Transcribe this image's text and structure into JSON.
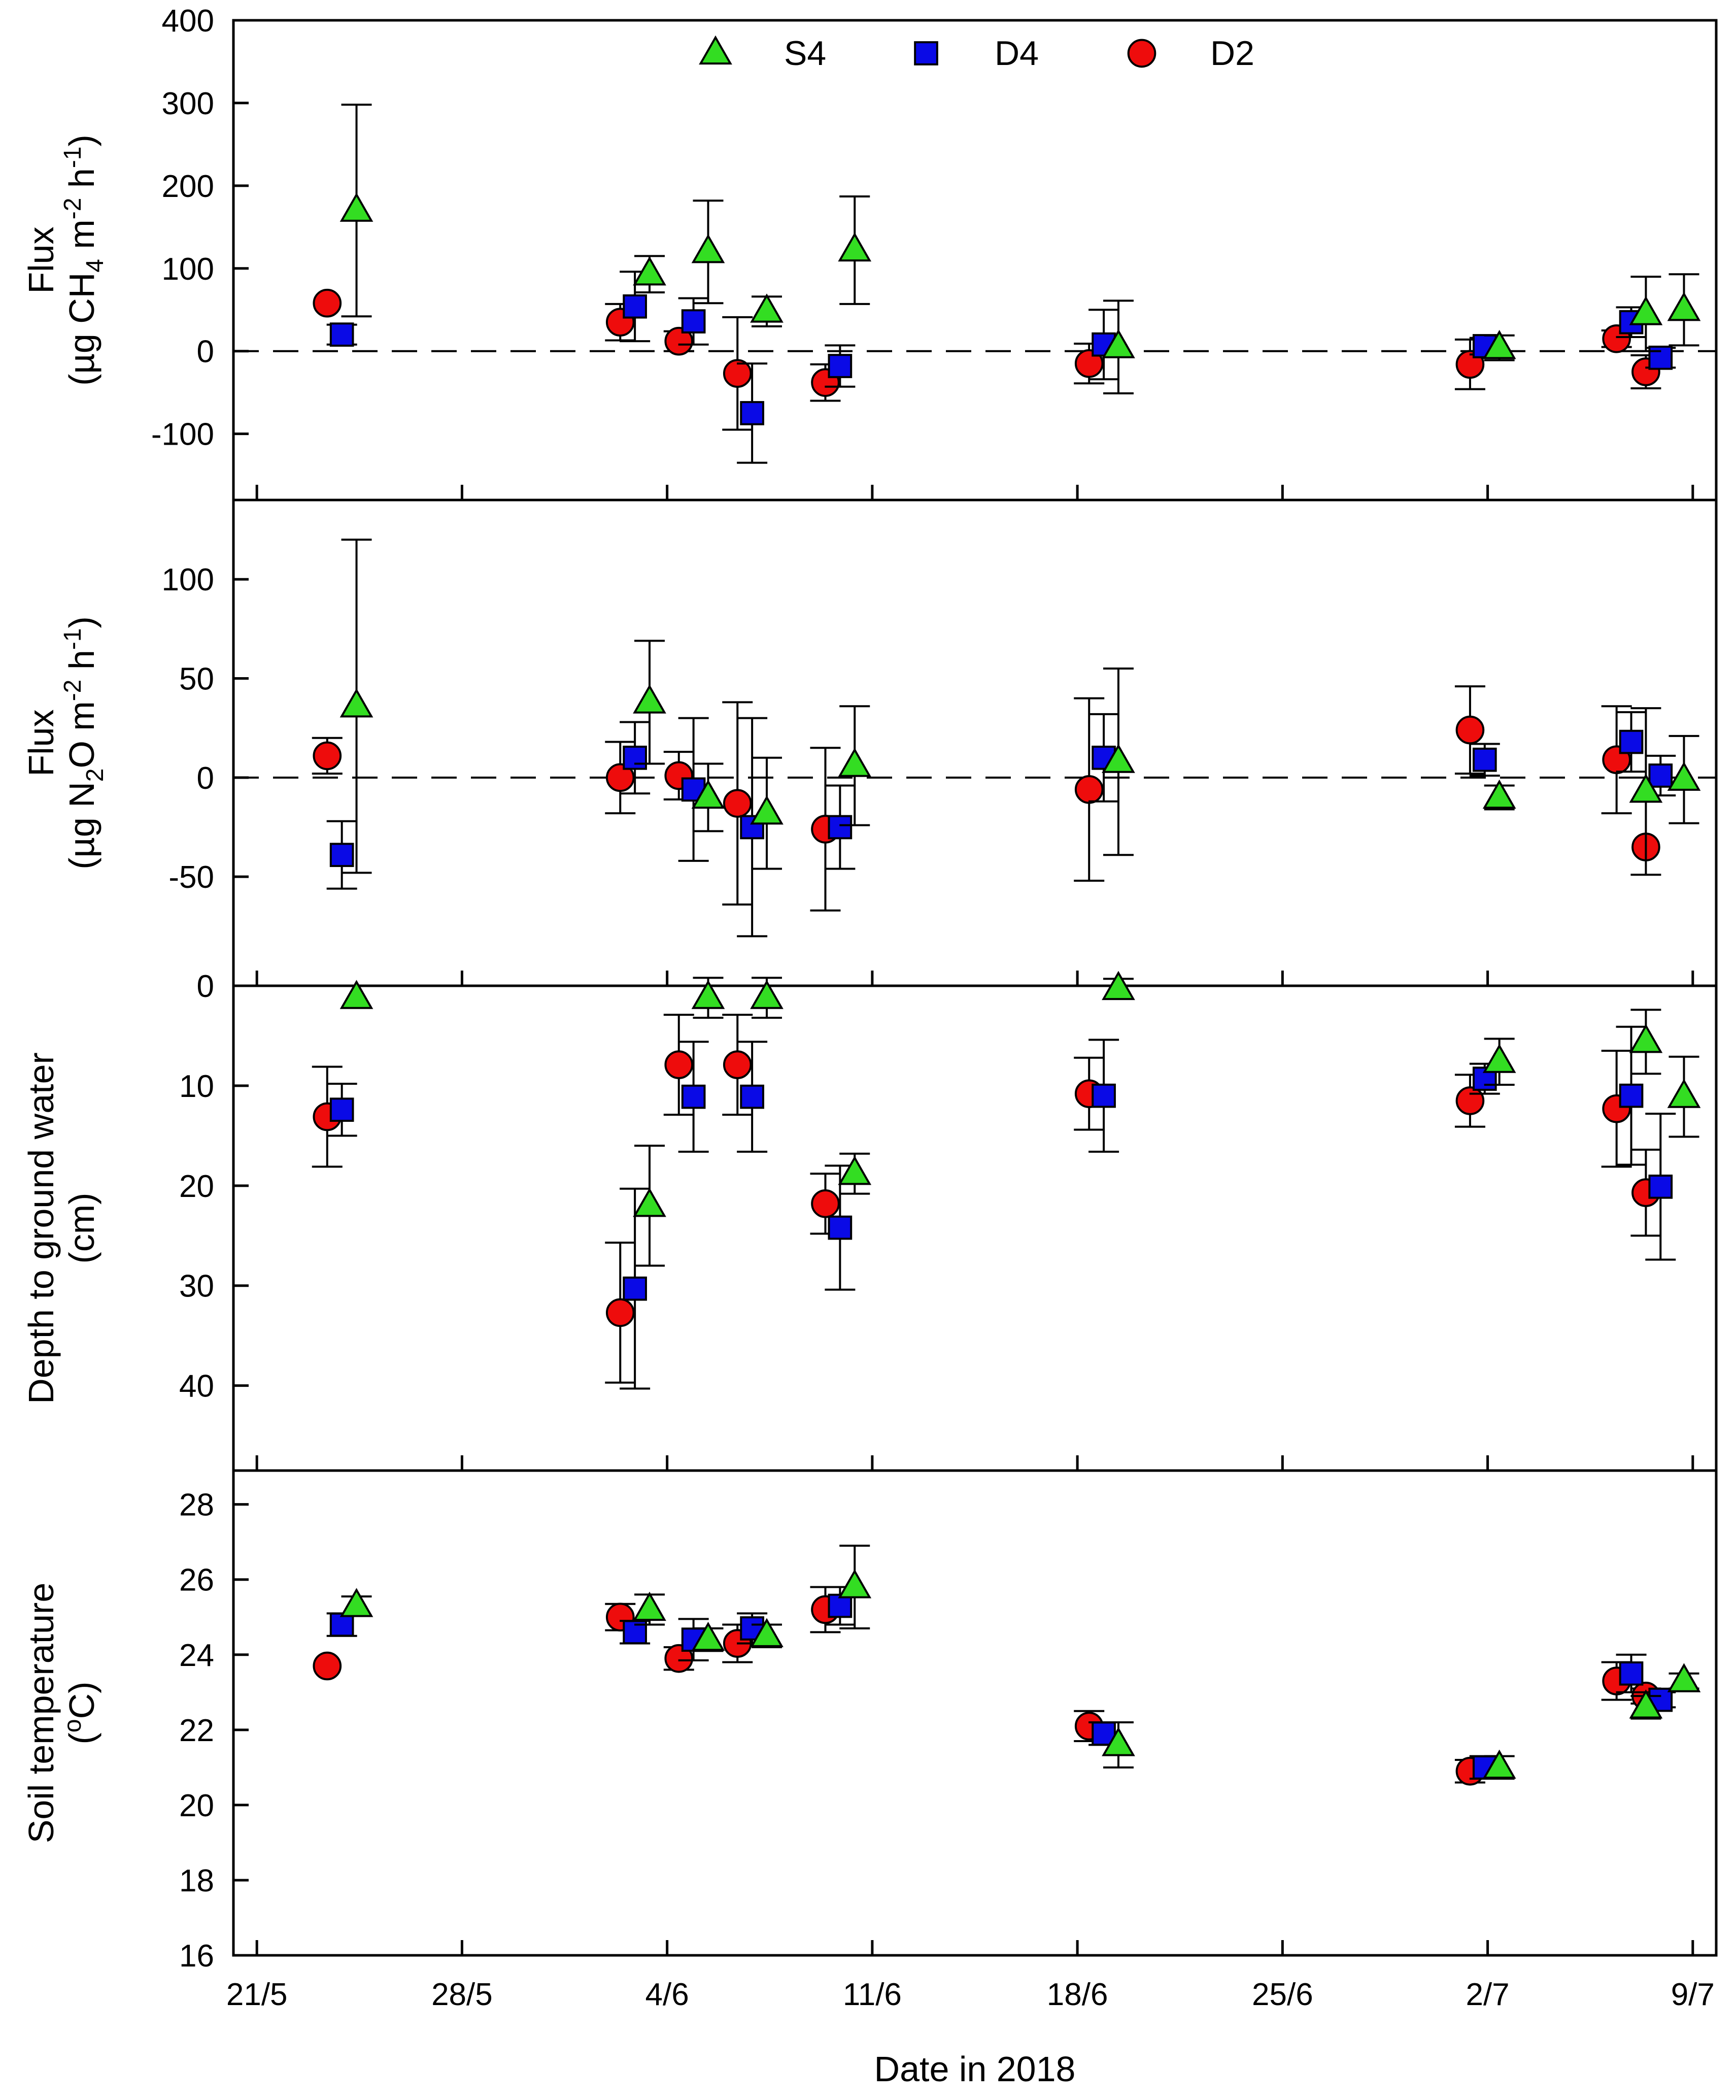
{
  "chart_data": {
    "type": "scatter",
    "x_axis": {
      "label": "Date in 2018",
      "tick_labels": [
        "21/5",
        "28/5",
        "4/6",
        "11/6",
        "18/6",
        "25/6",
        "2/7",
        "9/7"
      ],
      "tick_days": [
        0,
        7,
        14,
        21,
        28,
        35,
        42,
        49
      ],
      "range_days": [
        -0.8,
        49.8
      ]
    },
    "legend": {
      "position": "top-center",
      "entries": [
        {
          "name": "S4",
          "marker": "triangle",
          "color": "#33dd22"
        },
        {
          "name": "D4",
          "marker": "square",
          "color": "#0a0ae6"
        },
        {
          "name": "D2",
          "marker": "circle",
          "color": "#ee0c0c"
        }
      ]
    },
    "panels": [
      {
        "id": "ch4",
        "ylabel_line1": "Flux",
        "ylabel_line2": {
          "pre": "(µg CH",
          "sub": "4",
          "mid": " m",
          "sup1": "-2",
          "mid2": " h",
          "sup2": "-1",
          "post": ")"
        },
        "ylim": [
          -180,
          400
        ],
        "inverted": false,
        "yticks": [
          -100,
          0,
          100,
          200,
          300,
          400
        ],
        "zero_line": true,
        "series": [
          {
            "name": "S4",
            "points": [
              {
                "x": 3.4,
                "y": 170,
                "err": 128
              },
              {
                "x": 13.4,
                "y": 93,
                "err": 22
              },
              {
                "x": 15.4,
                "y": 120,
                "err": 62
              },
              {
                "x": 17.4,
                "y": 48,
                "err": 18
              },
              {
                "x": 20.4,
                "y": 122,
                "err": 65
              },
              {
                "x": 29.4,
                "y": 5,
                "err": 56
              },
              {
                "x": 42.4,
                "y": 4,
                "err": 15
              },
              {
                "x": 47.4,
                "y": 45,
                "err": 45
              },
              {
                "x": 48.7,
                "y": 50,
                "err": 43
              }
            ]
          },
          {
            "name": "D4",
            "points": [
              {
                "x": 2.9,
                "y": 20,
                "err": 12
              },
              {
                "x": 12.9,
                "y": 54,
                "err": 42
              },
              {
                "x": 14.9,
                "y": 36,
                "err": 28
              },
              {
                "x": 16.9,
                "y": -75,
                "err": 60
              },
              {
                "x": 19.9,
                "y": -18,
                "err": 25
              },
              {
                "x": 28.9,
                "y": 8,
                "err": 42
              },
              {
                "x": 41.9,
                "y": 6,
                "err": 10
              },
              {
                "x": 46.9,
                "y": 35,
                "err": 18
              },
              {
                "x": 47.9,
                "y": -8,
                "err": 12
              }
            ]
          },
          {
            "name": "D2",
            "points": [
              {
                "x": 2.4,
                "y": 58,
                "err": 0
              },
              {
                "x": 12.4,
                "y": 35,
                "err": 22
              },
              {
                "x": 14.4,
                "y": 12,
                "err": 12
              },
              {
                "x": 16.4,
                "y": -27,
                "err": 68
              },
              {
                "x": 19.4,
                "y": -38,
                "err": 22
              },
              {
                "x": 28.4,
                "y": -15,
                "err": 24
              },
              {
                "x": 41.4,
                "y": -16,
                "err": 30
              },
              {
                "x": 46.4,
                "y": 15,
                "err": 10
              },
              {
                "x": 47.4,
                "y": -25,
                "err": 20
              }
            ]
          }
        ]
      },
      {
        "id": "n2o",
        "ylabel_line1": "Flux",
        "ylabel_line2": {
          "pre": "(µg N",
          "sub": "2",
          "mid": "O m",
          "sup1": "-2",
          "mid2": " h",
          "sup2": "-1",
          "post": ")"
        },
        "ylim": [
          -105,
          140
        ],
        "inverted": false,
        "yticks": [
          -50,
          0,
          50,
          100
        ],
        "zero_line": true,
        "series": [
          {
            "name": "S4",
            "points": [
              {
                "x": 3.4,
                "y": 36,
                "err": 84
              },
              {
                "x": 13.4,
                "y": 38,
                "err": 31
              },
              {
                "x": 15.4,
                "y": -10,
                "err": 17
              },
              {
                "x": 17.4,
                "y": -18,
                "err": 28
              },
              {
                "x": 20.4,
                "y": 6,
                "err": 30
              },
              {
                "x": 29.4,
                "y": 8,
                "err": 47
              },
              {
                "x": 42.4,
                "y": -10,
                "err": 6
              },
              {
                "x": 47.4,
                "y": -7,
                "err": 42
              },
              {
                "x": 48.7,
                "y": -1,
                "err": 22
              }
            ]
          },
          {
            "name": "D4",
            "points": [
              {
                "x": 2.9,
                "y": -39,
                "err": 17
              },
              {
                "x": 12.9,
                "y": 10,
                "err": 18
              },
              {
                "x": 14.9,
                "y": -6,
                "err": 36
              },
              {
                "x": 16.9,
                "y": -25,
                "err": 55
              },
              {
                "x": 19.9,
                "y": -25,
                "err": 21
              },
              {
                "x": 28.9,
                "y": 10,
                "err": 22
              },
              {
                "x": 41.9,
                "y": 9,
                "err": 8
              },
              {
                "x": 46.9,
                "y": 18,
                "err": 15
              },
              {
                "x": 47.9,
                "y": 1,
                "err": 10
              }
            ]
          },
          {
            "name": "D2",
            "points": [
              {
                "x": 2.4,
                "y": 11,
                "err": 9
              },
              {
                "x": 12.4,
                "y": 0,
                "err": 18
              },
              {
                "x": 14.4,
                "y": 1,
                "err": 12
              },
              {
                "x": 16.4,
                "y": -13,
                "err": 51
              },
              {
                "x": 19.4,
                "y": -26,
                "err": 41
              },
              {
                "x": 28.4,
                "y": -6,
                "err": 46
              },
              {
                "x": 41.4,
                "y": 24,
                "err": 22
              },
              {
                "x": 46.4,
                "y": 9,
                "err": 27
              },
              {
                "x": 47.4,
                "y": -35,
                "err": 0
              }
            ]
          }
        ]
      },
      {
        "id": "depth",
        "ylabel_line1": "Depth to ground water",
        "ylabel_line2_text": "(cm)",
        "ylim": [
          0,
          48.5
        ],
        "inverted": true,
        "yticks": [
          0,
          10,
          20,
          30,
          40
        ],
        "zero_line": false,
        "series": [
          {
            "name": "S4",
            "points": [
              {
                "x": 3.4,
                "y": 1.2,
                "err": 0
              },
              {
                "x": 13.4,
                "y": 22,
                "err": 6
              },
              {
                "x": 15.4,
                "y": 1.2,
                "err": 2
              },
              {
                "x": 17.4,
                "y": 1.2,
                "err": 2
              },
              {
                "x": 20.4,
                "y": 18.8,
                "err": 2
              },
              {
                "x": 29.4,
                "y": 0.3,
                "err": 1
              },
              {
                "x": 42.4,
                "y": 7.6,
                "err": 2.3
              },
              {
                "x": 47.4,
                "y": 5.6,
                "err": 3.2
              },
              {
                "x": 48.7,
                "y": 11.1,
                "err": 4
              }
            ]
          },
          {
            "name": "D4",
            "points": [
              {
                "x": 2.9,
                "y": 12.4,
                "err": 2.6
              },
              {
                "x": 12.9,
                "y": 30.3,
                "err": 10
              },
              {
                "x": 14.9,
                "y": 11.1,
                "err": 5.5
              },
              {
                "x": 16.9,
                "y": 11.1,
                "err": 5.5
              },
              {
                "x": 19.9,
                "y": 24.2,
                "err": 6.2
              },
              {
                "x": 28.9,
                "y": 11,
                "err": 5.6
              },
              {
                "x": 41.9,
                "y": 9.3,
                "err": 1.5
              },
              {
                "x": 46.9,
                "y": 11,
                "err": 6.9
              },
              {
                "x": 47.9,
                "y": 20.1,
                "err": 7.3
              }
            ]
          },
          {
            "name": "D2",
            "points": [
              {
                "x": 2.4,
                "y": 13.1,
                "err": 5
              },
              {
                "x": 12.4,
                "y": 32.7,
                "err": 7
              },
              {
                "x": 14.4,
                "y": 7.9,
                "err": 5
              },
              {
                "x": 16.4,
                "y": 7.9,
                "err": 5
              },
              {
                "x": 19.4,
                "y": 21.8,
                "err": 3
              },
              {
                "x": 28.4,
                "y": 10.8,
                "err": 3.6
              },
              {
                "x": 41.4,
                "y": 11.5,
                "err": 2.6
              },
              {
                "x": 46.4,
                "y": 12.3,
                "err": 5.8
              },
              {
                "x": 47.4,
                "y": 20.7,
                "err": 4.3
              }
            ]
          }
        ]
      },
      {
        "id": "temp",
        "ylabel_line1": "Soil temperature",
        "ylabel_line2": {
          "pre": "(",
          "supdeg": "o",
          "post": "C)"
        },
        "ylim": [
          16,
          28.9
        ],
        "inverted": false,
        "yticks": [
          16,
          18,
          20,
          22,
          24,
          26,
          28
        ],
        "zero_line": false,
        "series": [
          {
            "name": "S4",
            "points": [
              {
                "x": 3.4,
                "y": 25.3,
                "err": 0.25
              },
              {
                "x": 13.4,
                "y": 25.2,
                "err": 0.4
              },
              {
                "x": 15.4,
                "y": 24.4,
                "err": 0.3
              },
              {
                "x": 17.4,
                "y": 24.5,
                "err": 0.3
              },
              {
                "x": 20.4,
                "y": 25.8,
                "err": 1.1
              },
              {
                "x": 29.4,
                "y": 21.6,
                "err": 0.6
              },
              {
                "x": 42.4,
                "y": 21,
                "err": 0.3
              },
              {
                "x": 47.4,
                "y": 22.6,
                "err": 0.3
              },
              {
                "x": 48.7,
                "y": 23.3,
                "err": 0.2
              }
            ]
          },
          {
            "name": "D4",
            "points": [
              {
                "x": 2.9,
                "y": 24.8,
                "err": 0.3
              },
              {
                "x": 12.9,
                "y": 24.6,
                "err": 0.3
              },
              {
                "x": 14.9,
                "y": 24.4,
                "err": 0.55
              },
              {
                "x": 16.9,
                "y": 24.7,
                "err": 0.4
              },
              {
                "x": 19.9,
                "y": 25.3,
                "err": 0.5
              },
              {
                "x": 28.9,
                "y": 21.9,
                "err": 0.3
              },
              {
                "x": 41.9,
                "y": 21,
                "err": 0.3
              },
              {
                "x": 46.9,
                "y": 23.5,
                "err": 0.5
              },
              {
                "x": 47.9,
                "y": 22.8,
                "err": 0.2
              }
            ]
          },
          {
            "name": "D2",
            "points": [
              {
                "x": 2.4,
                "y": 23.7,
                "err": 0
              },
              {
                "x": 12.4,
                "y": 25,
                "err": 0.35
              },
              {
                "x": 14.4,
                "y": 23.9,
                "err": 0.3
              },
              {
                "x": 16.4,
                "y": 24.3,
                "err": 0.5
              },
              {
                "x": 19.4,
                "y": 25.2,
                "err": 0.6
              },
              {
                "x": 28.4,
                "y": 22.1,
                "err": 0.4
              },
              {
                "x": 41.4,
                "y": 20.9,
                "err": 0.3
              },
              {
                "x": 46.4,
                "y": 23.3,
                "err": 0.5
              },
              {
                "x": 47.4,
                "y": 22.9,
                "err": 0.2
              }
            ]
          }
        ]
      }
    ]
  }
}
